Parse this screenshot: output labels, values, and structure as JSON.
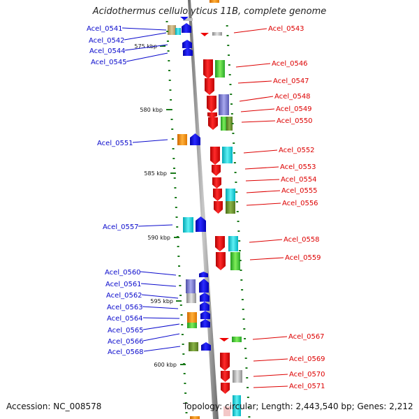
{
  "title": "Acidothermus cellulolyticus 11B, complete genome",
  "footer": {
    "accession": "Accession: NC_008578",
    "topology": "Topology: circular; Length: 2,443,540 bp; Genes: 2,212"
  },
  "colors": {
    "left_label": "#0a0acc",
    "right_label": "#dd0000",
    "forward_gene": "#ee0000",
    "reverse_gene": "#1010ee",
    "backbone": "#999999",
    "tick_marks": "#1a7a1a"
  },
  "scale": {
    "ticks": [
      {
        "label": "575 kbp",
        "kbp": 575
      },
      {
        "label": "580 kbp",
        "kbp": 580
      },
      {
        "label": "585 kbp",
        "kbp": 585
      },
      {
        "label": "590 kbp",
        "kbp": 590
      },
      {
        "label": "595 kbp",
        "kbp": 595
      },
      {
        "label": "600 kbp",
        "kbp": 600
      }
    ]
  },
  "genes": {
    "left": [
      {
        "name": "Acel_0541"
      },
      {
        "name": "Acel_0542"
      },
      {
        "name": "Acel_0544"
      },
      {
        "name": "Acel_0545"
      },
      {
        "name": "Acel_0551"
      },
      {
        "name": "Acel_0557"
      },
      {
        "name": "Acel_0560"
      },
      {
        "name": "Acel_0561"
      },
      {
        "name": "Acel_0562"
      },
      {
        "name": "Acel_0563"
      },
      {
        "name": "Acel_0564"
      },
      {
        "name": "Acel_0565"
      },
      {
        "name": "Acel_0566"
      },
      {
        "name": "Acel_0568"
      }
    ],
    "right": [
      {
        "name": "Acel_0543"
      },
      {
        "name": "Acel_0546"
      },
      {
        "name": "Acel_0547"
      },
      {
        "name": "Acel_0548"
      },
      {
        "name": "Acel_0549"
      },
      {
        "name": "Acel_0550"
      },
      {
        "name": "Acel_0552"
      },
      {
        "name": "Acel_0553"
      },
      {
        "name": "Acel_0554"
      },
      {
        "name": "Acel_0555"
      },
      {
        "name": "Acel_0556"
      },
      {
        "name": "Acel_0558"
      },
      {
        "name": "Acel_0559"
      },
      {
        "name": "Acel_0567"
      },
      {
        "name": "Acel_0569"
      },
      {
        "name": "Acel_0570"
      },
      {
        "name": "Acel_0571"
      }
    ]
  }
}
